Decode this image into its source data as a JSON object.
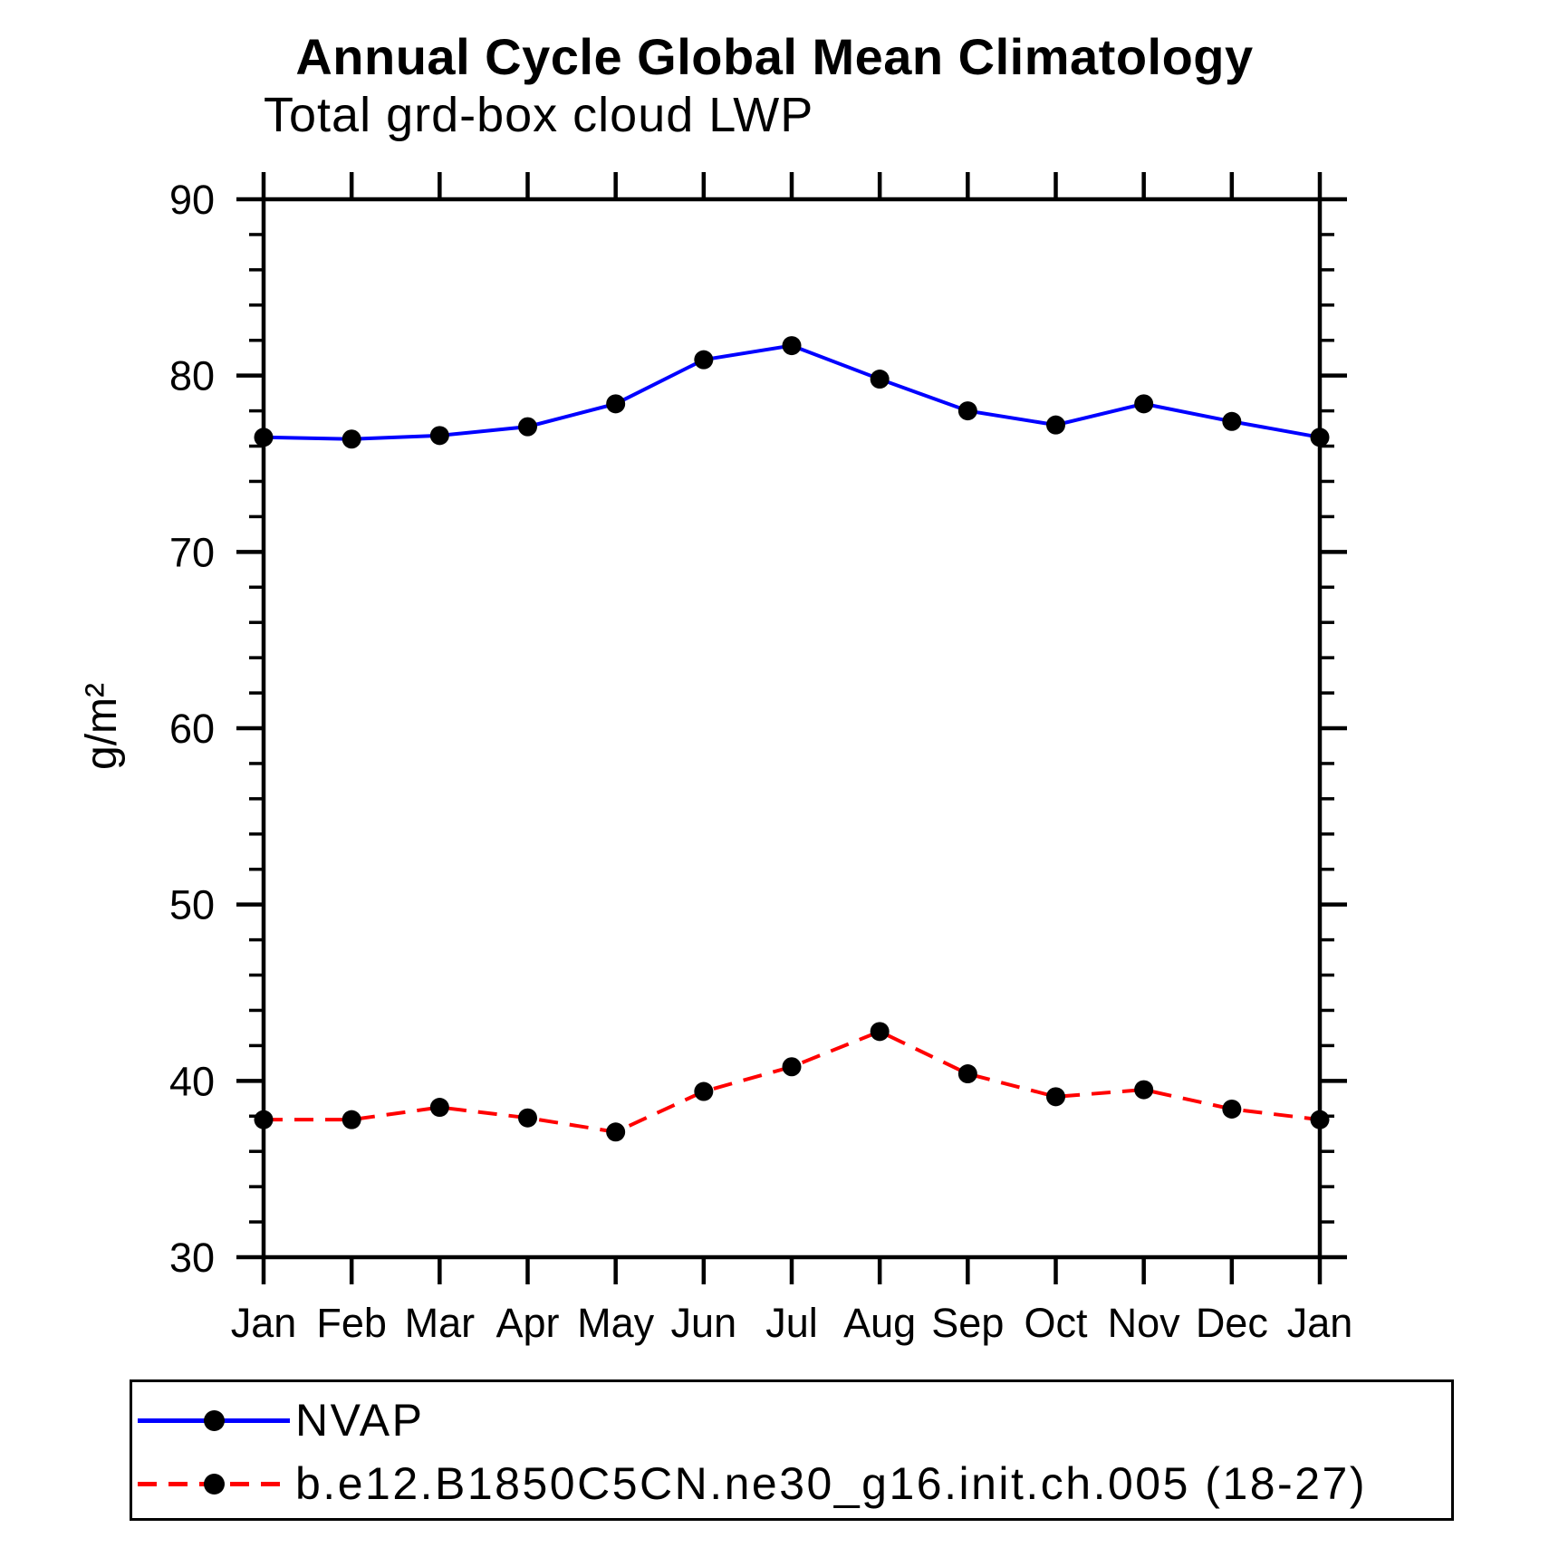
{
  "page": {
    "title": "Annual Cycle Global Mean Climatology",
    "subtitle": "Total grd-box cloud LWP"
  },
  "legend": {
    "items": [
      {
        "label": "NVAP"
      },
      {
        "label": "b.e12.B1850C5CN.ne30_g16.init.ch.005 (18-27)"
      }
    ]
  },
  "chart_data": {
    "type": "line",
    "title": "Annual Cycle Global Mean Climatology",
    "subtitle": "Total grd-box cloud LWP",
    "xlabel": "",
    "ylabel": "g/m²",
    "categories": [
      "Jan",
      "Feb",
      "Mar",
      "Apr",
      "May",
      "Jun",
      "Jul",
      "Aug",
      "Sep",
      "Oct",
      "Nov",
      "Dec",
      "Jan"
    ],
    "ylim": [
      30,
      90
    ],
    "ytick_major_step": 10,
    "ytick_minor_step": 2,
    "ytick_labels": [
      "30",
      "40",
      "50",
      "60",
      "70",
      "80",
      "90"
    ],
    "grid": false,
    "legend_position": "bottom-left-box",
    "frame_color": "#000000",
    "series": [
      {
        "name": "NVAP",
        "color": "#0000ff",
        "line_style": "solid",
        "marker": "filled-circle",
        "marker_color": "#000000",
        "values": [
          76.5,
          76.4,
          76.6,
          77.1,
          78.4,
          80.9,
          81.7,
          79.8,
          78.0,
          77.2,
          78.4,
          77.4,
          76.5
        ]
      },
      {
        "name": "b.e12.B1850C5CN.ne30_g16.init.ch.005 (18-27)",
        "color": "#ff0000",
        "line_style": "dashed",
        "marker": "filled-circle",
        "marker_color": "#000000",
        "values": [
          37.8,
          37.8,
          38.5,
          37.9,
          37.1,
          39.4,
          40.8,
          42.8,
          40.4,
          39.1,
          39.5,
          38.4,
          37.8
        ]
      }
    ]
  }
}
